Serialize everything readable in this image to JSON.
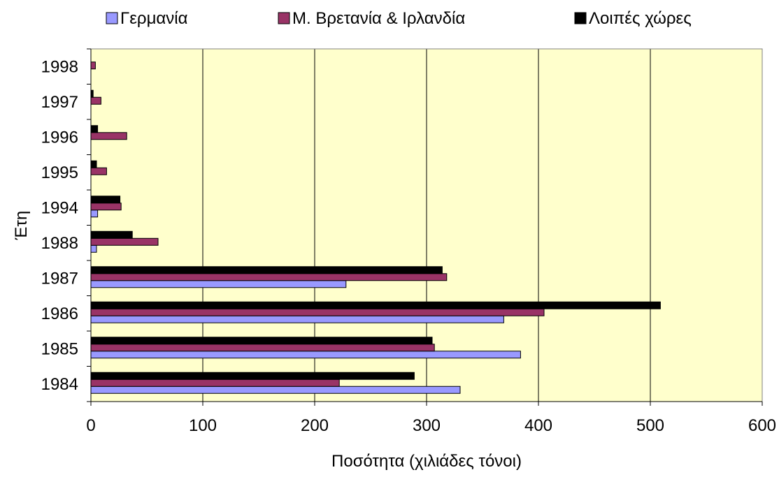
{
  "chart_data": {
    "type": "bar",
    "orientation": "horizontal",
    "title": "",
    "xlabel": "Ποσότητα (χιλιάδες τόνοι)",
    "ylabel": "Έτη",
    "xlim": [
      0,
      600
    ],
    "x_ticks": [
      0,
      100,
      200,
      300,
      400,
      500,
      600
    ],
    "grid": "vertical lines at each x tick",
    "legend_position": "top",
    "plot_background": "#FFFFCC",
    "categories": [
      "1998",
      "1997",
      "1996",
      "1995",
      "1994",
      "1988",
      "1987",
      "1986",
      "1985",
      "1984"
    ],
    "series": [
      {
        "name": "Γερμανία",
        "color": "#9999FF",
        "values": [
          0,
          0,
          0,
          0,
          6,
          5,
          228,
          369,
          384,
          330
        ]
      },
      {
        "name": "Μ. Βρετανία & Ιρλανδία",
        "color": "#993366",
        "values": [
          4,
          9,
          32,
          14,
          27,
          60,
          318,
          405,
          307,
          222
        ]
      },
      {
        "name": "Λοιπές χώρες",
        "color": "#000000",
        "values": [
          0,
          2,
          6,
          5,
          26,
          37,
          314,
          509,
          305,
          289
        ]
      }
    ]
  }
}
